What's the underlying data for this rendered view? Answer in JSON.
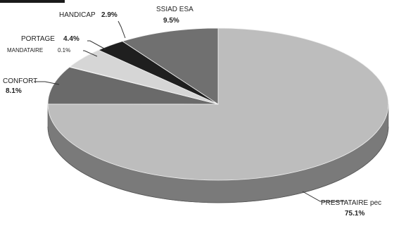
{
  "chart_data": {
    "type": "pie",
    "style": "3d",
    "title": "",
    "slices": [
      {
        "label": "PRESTATAIRE pec",
        "value": 75.1,
        "value_text": "75.1%",
        "color": "#bdbdbd",
        "side": "#7a7a7a"
      },
      {
        "label": "CONFORT",
        "value": 8.1,
        "value_text": "8.1%",
        "color": "#6a6a6a",
        "side": "#3f3f3f"
      },
      {
        "label": "MANDATAIRE",
        "value": 0.1,
        "value_text": "0.1%",
        "color": "#4a4a4a",
        "side": "#2e2e2e"
      },
      {
        "label": "PORTAGE",
        "value": 4.4,
        "value_text": "4.4%",
        "color": "#d6d6d6",
        "side": "#9a9a9a"
      },
      {
        "label": "HANDICAP",
        "value": 2.9,
        "value_text": "2.9%",
        "color": "#1f1f1f",
        "side": "#111111"
      },
      {
        "label": "SSIAD ESA",
        "value": 9.5,
        "value_text": "9.5%",
        "color": "#707070",
        "side": "#444444"
      }
    ]
  }
}
